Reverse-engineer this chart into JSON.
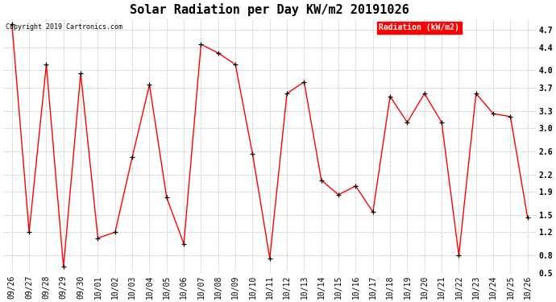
{
  "title": "Solar Radiation per Day KW/m2 20191026",
  "copyright_text": "Copyright 2019 Cartronics.com",
  "legend_label": "Radiation (kW/m2)",
  "dates": [
    "09/26",
    "09/27",
    "09/28",
    "09/29",
    "09/30",
    "10/01",
    "10/02",
    "10/03",
    "10/04",
    "10/05",
    "10/06",
    "10/07",
    "10/08",
    "10/09",
    "10/10",
    "10/11",
    "10/12",
    "10/13",
    "10/14",
    "10/15",
    "10/16",
    "10/17",
    "10/18",
    "10/19",
    "10/20",
    "10/21",
    "10/22",
    "10/23",
    "10/24",
    "10/25",
    "10/26"
  ],
  "values": [
    4.8,
    1.2,
    4.1,
    0.6,
    3.95,
    1.1,
    1.2,
    2.5,
    3.75,
    1.8,
    1.0,
    4.45,
    4.3,
    4.1,
    2.55,
    0.75,
    3.6,
    3.8,
    2.1,
    1.85,
    2.0,
    1.55,
    3.55,
    3.1,
    3.6,
    3.1,
    0.8,
    3.6,
    3.25,
    3.2,
    1.45
  ],
  "ylim": [
    0.5,
    4.9
  ],
  "yticks": [
    0.5,
    0.8,
    1.2,
    1.5,
    1.9,
    2.2,
    2.6,
    3.0,
    3.3,
    3.7,
    4.0,
    4.4,
    4.7
  ],
  "line_color": "#ff0000",
  "marker_color": "#000000",
  "background_color": "#ffffff",
  "grid_color": "#aaaaaa",
  "title_fontsize": 11,
  "tick_fontsize": 7,
  "copyright_fontsize": 6,
  "legend_fontsize": 7,
  "legend_bg_color": "#ff0000",
  "legend_text_color": "#ffffff"
}
